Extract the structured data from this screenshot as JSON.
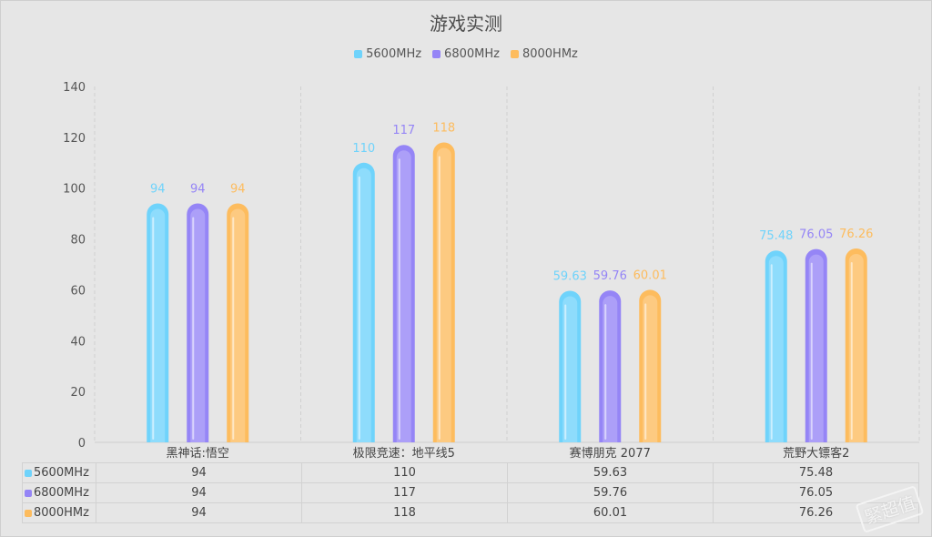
{
  "chart_data": {
    "type": "bar",
    "title": "游戏实测",
    "categories": [
      "黑神话:悟空",
      "极限竞速：地平线5",
      "赛博朋克 2077",
      "荒野大镖客2"
    ],
    "series": [
      {
        "name": "5600MHz",
        "color": "#6fd3fb",
        "values": [
          94,
          110,
          59.63,
          75.48
        ]
      },
      {
        "name": "6800MHz",
        "color": "#9585f6",
        "values": [
          94,
          117,
          59.76,
          76.05
        ]
      },
      {
        "name": "8000HMz",
        "color": "#fdbc5e",
        "values": [
          94,
          118,
          60.01,
          76.26
        ]
      }
    ],
    "ylim": [
      0,
      140
    ],
    "yticks": [
      0,
      20,
      40,
      60,
      80,
      100,
      120,
      140
    ],
    "xlabel": "",
    "ylabel": "",
    "legend": "top-center",
    "grid": "vertical dashed",
    "data_table": true
  },
  "watermark": "緊超值"
}
